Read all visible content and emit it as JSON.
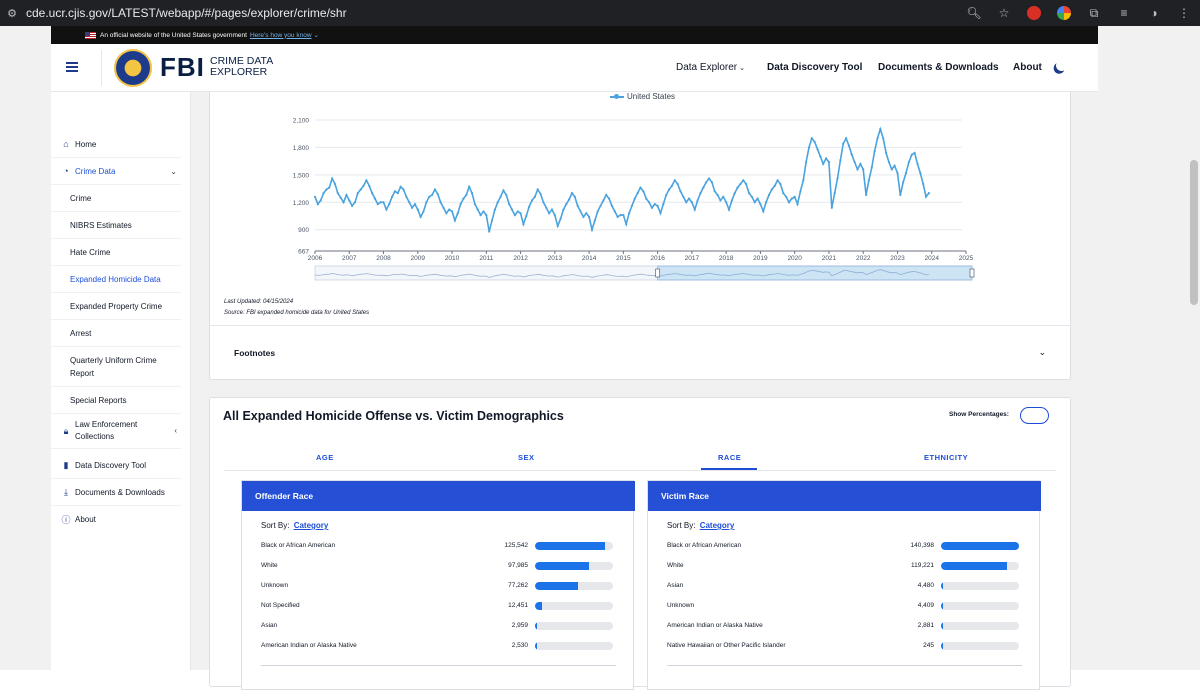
{
  "browser": {
    "url": "cde.ucr.cjis.gov/LATEST/webapp/#/pages/explorer/crime/shr"
  },
  "gov_banner": {
    "text": "An official website of the United States government",
    "link": "Here's how you know"
  },
  "header": {
    "logo_word": "FBI",
    "logo_sub_1": "CRIME DATA",
    "logo_sub_2": "EXPLORER",
    "nav": [
      "Data Explorer",
      "Data Discovery Tool",
      "Documents & Downloads",
      "About"
    ]
  },
  "sidebar": {
    "items": [
      {
        "label": "Home",
        "icon": "home-icon"
      },
      {
        "label": "Crime Data",
        "icon": "pie-chart-icon"
      },
      {
        "label": "Crime"
      },
      {
        "label": "NIBRS Estimates"
      },
      {
        "label": "Hate Crime"
      },
      {
        "label": "Expanded Homicide Data"
      },
      {
        "label": "Expanded Property Crime"
      },
      {
        "label": "Arrest"
      },
      {
        "label": "Quarterly Uniform Crime Report"
      },
      {
        "label": "Special Reports"
      },
      {
        "label": "Law Enforcement Collections",
        "icon": "lock-icon"
      },
      {
        "label": "Data Discovery Tool",
        "icon": "bar-chart-icon"
      },
      {
        "label": "Documents & Downloads",
        "icon": "download-icon"
      },
      {
        "label": "About",
        "icon": "info-icon"
      }
    ]
  },
  "chart_section": {
    "last_updated": "Last Updated: 04/15/2024",
    "source": "Source: FBI expanded homicide data for United States",
    "footnotes_label": "Footnotes"
  },
  "chart_data": {
    "type": "line",
    "title": "",
    "xlabel": "",
    "ylabel": "",
    "legend": "top-center",
    "grid": true,
    "x_ticks": [
      "2006",
      "2007",
      "2008",
      "2009",
      "2010",
      "2011",
      "2012",
      "2013",
      "2014",
      "2015",
      "2016",
      "2017",
      "2018",
      "2019",
      "2020",
      "2021",
      "2022",
      "2023",
      "2024",
      "2025"
    ],
    "y_ticks": [
      "667",
      "900",
      "1,200",
      "1,500",
      "1,800",
      "2,100"
    ],
    "ylim": [
      667,
      2100
    ],
    "series": [
      {
        "name": "United States",
        "color": "#4aa3df",
        "x_start": "2006-01",
        "frequency": "monthly",
        "values": [
          1260,
          1180,
          1220,
          1300,
          1340,
          1360,
          1460,
          1400,
          1300,
          1250,
          1200,
          1280,
          1220,
          1160,
          1200,
          1300,
          1340,
          1380,
          1440,
          1380,
          1300,
          1240,
          1180,
          1200,
          1200,
          1120,
          1180,
          1260,
          1320,
          1300,
          1370,
          1340,
          1260,
          1200,
          1140,
          1180,
          1120,
          1040,
          1100,
          1200,
          1260,
          1280,
          1340,
          1290,
          1200,
          1140,
          1080,
          1120,
          1100,
          1000,
          1080,
          1180,
          1240,
          1280,
          1370,
          1300,
          1180,
          1120,
          1060,
          1100,
          1060,
          880,
          1000,
          1120,
          1200,
          1260,
          1330,
          1280,
          1180,
          1120,
          1060,
          1100,
          1080,
          960,
          1050,
          1150,
          1220,
          1260,
          1340,
          1290,
          1200,
          1140,
          1080,
          1120,
          1060,
          940,
          1020,
          1120,
          1180,
          1230,
          1300,
          1260,
          1160,
          1100,
          1040,
          1080,
          1040,
          900,
          1000,
          1100,
          1160,
          1220,
          1280,
          1240,
          1160,
          1100,
          1040,
          1060,
          1060,
          960,
          1080,
          1160,
          1240,
          1300,
          1360,
          1320,
          1240,
          1200,
          1140,
          1180,
          1160,
          1080,
          1180,
          1280,
          1340,
          1380,
          1440,
          1400,
          1320,
          1260,
          1200,
          1240,
          1200,
          1120,
          1220,
          1300,
          1360,
          1420,
          1460,
          1420,
          1320,
          1280,
          1220,
          1260,
          1200,
          1120,
          1220,
          1300,
          1360,
          1400,
          1440,
          1400,
          1300,
          1260,
          1200,
          1240,
          1180,
          1100,
          1200,
          1280,
          1340,
          1380,
          1440,
          1400,
          1300,
          1260,
          1200,
          1240,
          1260,
          1180,
          1320,
          1440,
          1640,
          1800,
          1900,
          1860,
          1780,
          1700,
          1620,
          1680,
          1640,
          1140,
          1300,
          1460,
          1660,
          1840,
          1900,
          1820,
          1720,
          1640,
          1560,
          1620,
          1560,
          1280,
          1440,
          1580,
          1760,
          1900,
          2000,
          1900,
          1740,
          1640,
          1560,
          1600,
          1520,
          1280,
          1420,
          1520,
          1640,
          1720,
          1740,
          1620,
          1520,
          1400,
          1260,
          1300
        ]
      }
    ],
    "range_selector": {
      "start": "2016",
      "end": "2025"
    }
  },
  "demographics": {
    "title": "All Expanded Homicide Offense vs. Victim Demographics",
    "show_percentages_label": "Show Percentages:",
    "tabs": [
      "AGE",
      "SEX",
      "RACE",
      "ETHNICITY"
    ],
    "active_tab": "RACE",
    "sort_by_label": "Sort By:",
    "sort_by_value": "Category",
    "offender": {
      "title": "Offender Race",
      "max": 140398,
      "rows": [
        {
          "label": "Black or African American",
          "value": "125,542",
          "n": 125542
        },
        {
          "label": "White",
          "value": "97,985",
          "n": 97985
        },
        {
          "label": "Unknown",
          "value": "77,262",
          "n": 77262
        },
        {
          "label": "Not Specified",
          "value": "12,451",
          "n": 12451
        },
        {
          "label": "Asian",
          "value": "2,959",
          "n": 2959
        },
        {
          "label": "American Indian or Alaska Native",
          "value": "2,530",
          "n": 2530
        }
      ]
    },
    "victim": {
      "title": "Victim Race",
      "max": 140398,
      "rows": [
        {
          "label": "Black or African American",
          "value": "140,398",
          "n": 140398
        },
        {
          "label": "White",
          "value": "119,221",
          "n": 119221
        },
        {
          "label": "Asian",
          "value": "4,480",
          "n": 4480
        },
        {
          "label": "Unknown",
          "value": "4,409",
          "n": 4409
        },
        {
          "label": "American Indian or Alaska Native",
          "value": "2,881",
          "n": 2881
        },
        {
          "label": "Native Hawaiian or Other Pacific Islander",
          "value": "245",
          "n": 245
        }
      ]
    }
  }
}
